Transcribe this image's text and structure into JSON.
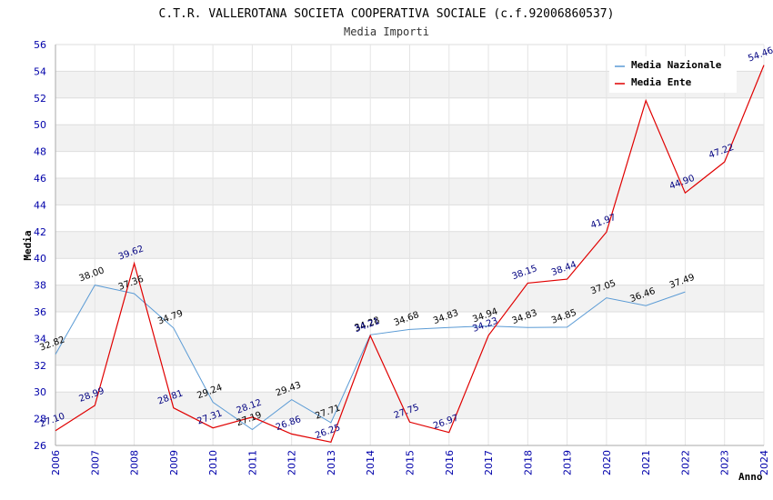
{
  "chart_data": {
    "type": "line",
    "title": "C.T.R. VALLEROTANA SOCIETA COOPERATIVA SOCIALE (c.f.92006860537)",
    "subtitle": "Media Importi",
    "xlabel": "Anno",
    "ylabel": "Media",
    "ylim": [
      26,
      56
    ],
    "y_ticks": [
      "26",
      "28",
      "30",
      "32",
      "34",
      "36",
      "38",
      "40",
      "42",
      "44",
      "46",
      "48",
      "50",
      "52",
      "54",
      "56"
    ],
    "categories": [
      "2006",
      "2007",
      "2008",
      "2009",
      "2010",
      "2011",
      "2012",
      "2013",
      "2014",
      "2015",
      "2016",
      "2017",
      "2018",
      "2019",
      "2020",
      "2021",
      "2022",
      "2023",
      "2024"
    ],
    "grid": true,
    "legend_position": "top-right",
    "series": [
      {
        "name": "Media Nazionale",
        "color": "#5b9bd5",
        "label_color": "#000000",
        "values": [
          32.82,
          38.0,
          37.36,
          34.79,
          29.24,
          27.19,
          29.43,
          27.71,
          34.28,
          34.68,
          34.83,
          34.94,
          34.83,
          34.85,
          37.05,
          36.46,
          37.49,
          null,
          null
        ],
        "labels": [
          "32.82",
          "38.00",
          "37.36",
          "34.79",
          "29.24",
          "27.19",
          "29.43",
          "27.71",
          "34.28",
          "34.68",
          "34.83",
          "34.94",
          "34.83",
          "34.85",
          "37.05",
          "36.46",
          "37.49",
          "",
          ""
        ]
      },
      {
        "name": "Media Ente",
        "color": "#e00000",
        "label_color": "#000080",
        "values": [
          27.1,
          28.99,
          39.62,
          28.81,
          27.31,
          28.12,
          26.86,
          26.25,
          34.21,
          27.75,
          26.97,
          34.23,
          38.15,
          38.44,
          41.97,
          51.8,
          44.9,
          47.22,
          54.46
        ],
        "labels": [
          "27.10",
          "28.99",
          "39.62",
          "28.81",
          "27.31",
          "28.12",
          "26.86",
          "26.25",
          "34.21",
          "27.75",
          "26.97",
          "34.23",
          "38.15",
          "38.44",
          "41.97",
          "",
          "44.90",
          "47.22",
          "54.46"
        ]
      }
    ]
  }
}
